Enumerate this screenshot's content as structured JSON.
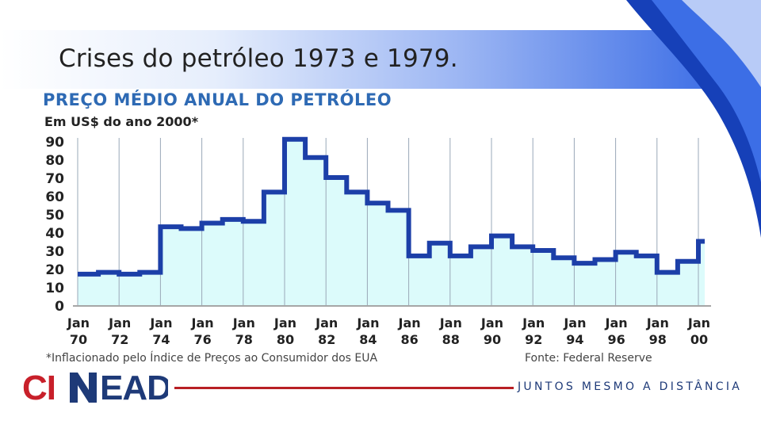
{
  "slide": {
    "title": "Crises do petróleo 1973 e 1979."
  },
  "colors": {
    "title_band_end": "#3e6fe6",
    "chart_title": "#2e6ab4",
    "step_line": "#1c3fa8",
    "area_fill": "#dcfbfb",
    "logo_red": "#c8202a",
    "logo_navy": "#1e3a78",
    "footer_line": "#b81f24"
  },
  "chart_data": {
    "type": "area",
    "title": "PREÇO MÉDIO ANUAL DO PETRÓLEO",
    "subtitle": "Em US$ do ano 2000*",
    "x": [
      1970,
      1971,
      1972,
      1973,
      1974,
      1975,
      1976,
      1977,
      1978,
      1979,
      1980,
      1981,
      1982,
      1983,
      1984,
      1985,
      1986,
      1987,
      1988,
      1989,
      1990,
      1991,
      1992,
      1993,
      1994,
      1995,
      1996,
      1997,
      1998,
      1999,
      2000
    ],
    "values": [
      17,
      18,
      17,
      18,
      43,
      42,
      45,
      47,
      46,
      62,
      91,
      81,
      70,
      62,
      56,
      52,
      27,
      34,
      27,
      32,
      38,
      32,
      30,
      26,
      23,
      25,
      29,
      27,
      18,
      24,
      35
    ],
    "ylim": [
      0,
      90
    ],
    "yticks": [
      "0",
      "10",
      "20",
      "30",
      "40",
      "50",
      "60",
      "70",
      "80",
      "90"
    ],
    "xtick_labels": [
      {
        "month": "Jan",
        "year": "70"
      },
      {
        "month": "Jan",
        "year": "72"
      },
      {
        "month": "Jan",
        "year": "74"
      },
      {
        "month": "Jan",
        "year": "76"
      },
      {
        "month": "Jan",
        "year": "78"
      },
      {
        "month": "Jan",
        "year": "80"
      },
      {
        "month": "Jan",
        "year": "82"
      },
      {
        "month": "Jan",
        "year": "84"
      },
      {
        "month": "Jan",
        "year": "86"
      },
      {
        "month": "Jan",
        "year": "88"
      },
      {
        "month": "Jan",
        "year": "90"
      },
      {
        "month": "Jan",
        "year": "92"
      },
      {
        "month": "Jan",
        "year": "94"
      },
      {
        "month": "Jan",
        "year": "96"
      },
      {
        "month": "Jan",
        "year": "98"
      },
      {
        "month": "Jan",
        "year": "00"
      }
    ],
    "grid": "vertical",
    "footnote": "*Inflacionado pelo Índice de Preços ao Consumidor dos EUA",
    "source": "Fonte: Federal Reserve"
  },
  "footer": {
    "logo_text_red": "CI",
    "logo_text_navy": "EAD",
    "tagline": "JUNTOS MESMO A DISTÂNCIA"
  }
}
